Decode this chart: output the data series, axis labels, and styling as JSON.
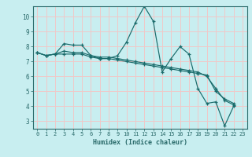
{
  "title": "",
  "xlabel": "Humidex (Indice chaleur)",
  "ylabel": "",
  "background_color": "#c8eef0",
  "grid_color": "#f0c8c8",
  "line_color": "#1a6b6b",
  "xlim": [
    -0.5,
    23.5
  ],
  "ylim": [
    2.5,
    10.7
  ],
  "xticks": [
    0,
    1,
    2,
    3,
    4,
    5,
    6,
    7,
    8,
    9,
    10,
    11,
    12,
    13,
    14,
    15,
    16,
    17,
    18,
    19,
    20,
    21,
    22,
    23
  ],
  "yticks": [
    3,
    4,
    5,
    6,
    7,
    8,
    9,
    10
  ],
  "series": [
    [
      7.6,
      7.4,
      7.5,
      8.2,
      8.1,
      8.1,
      7.4,
      7.2,
      7.2,
      7.4,
      8.3,
      9.6,
      10.7,
      9.7,
      6.3,
      7.2,
      8.0,
      7.5,
      5.2,
      4.2,
      4.3,
      2.7,
      4.0,
      null
    ],
    [
      7.6,
      7.4,
      7.5,
      7.5,
      7.5,
      7.5,
      7.3,
      7.2,
      7.2,
      7.1,
      7.0,
      6.9,
      6.8,
      6.7,
      6.6,
      6.5,
      6.4,
      6.3,
      6.2,
      6.1,
      5.0,
      4.5,
      4.2,
      null
    ],
    [
      7.6,
      7.4,
      7.5,
      7.7,
      7.6,
      7.6,
      7.4,
      7.3,
      7.3,
      7.2,
      7.1,
      7.0,
      6.9,
      6.8,
      6.7,
      6.6,
      6.5,
      6.4,
      6.3,
      6.0,
      5.2,
      4.4,
      4.1,
      null
    ]
  ]
}
